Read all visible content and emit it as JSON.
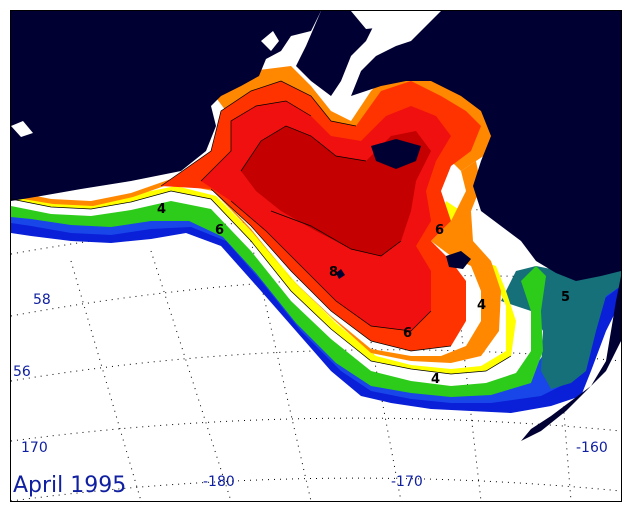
{
  "title": "April 1995",
  "latitude_labels": [
    "58",
    "56"
  ],
  "longitude_labels": [
    "170",
    "-180",
    "-170",
    "-160"
  ],
  "contour_labels": [
    "4",
    "6",
    "6",
    "8",
    "6",
    "4",
    "4",
    "5"
  ],
  "colors": {
    "land": "#000033",
    "ocean_bg": "#ffffff",
    "deep_blue": "#0a1fd8",
    "blue": "#1846e8",
    "teal": "#15707a",
    "green": "#2ecc1a",
    "yellow": "#ffff00",
    "orange": "#ff8800",
    "red_orange": "#ff3300",
    "red": "#f01010",
    "dark_red": "#c40000",
    "grid": "#000000"
  }
}
